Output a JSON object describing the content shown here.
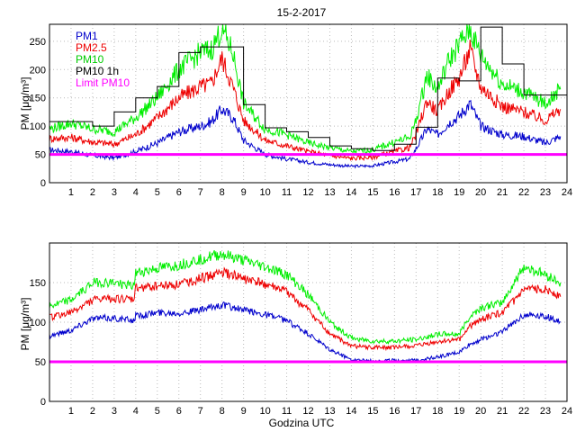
{
  "chart_data": [
    {
      "type": "line",
      "title": "15-2-2017",
      "xlabel": "",
      "ylabel": "PM [μg/m³]",
      "xlim": [
        0,
        24
      ],
      "ylim": [
        0,
        280
      ],
      "xticks": [
        "1",
        "2",
        "3",
        "4",
        "5",
        "6",
        "7",
        "8",
        "9",
        "10",
        "11",
        "12",
        "13",
        "14",
        "15",
        "16",
        "17",
        "18",
        "19",
        "20",
        "21",
        "22",
        "23",
        "24"
      ],
      "yticks": [
        "0",
        "50",
        "100",
        "150",
        "200",
        "250"
      ],
      "grid": true,
      "legend_position": "top-left",
      "legend": [
        "PM1",
        "PM2.5",
        "PM10",
        "PM10 1h",
        "Limit PM10"
      ],
      "series": [
        {
          "name": "PM1",
          "color": "#0000cc",
          "x": [
            0,
            1,
            2,
            3,
            4,
            5,
            6,
            7,
            7.5,
            8,
            8.5,
            9,
            10,
            11,
            12,
            13,
            14,
            15,
            16,
            16.7,
            17,
            17.5,
            18,
            18.5,
            19,
            19.5,
            20,
            21,
            22,
            23,
            23.7
          ],
          "y": [
            58,
            55,
            48,
            44,
            55,
            70,
            90,
            100,
            108,
            130,
            115,
            75,
            50,
            42,
            36,
            32,
            29,
            30,
            37,
            42,
            60,
            95,
            85,
            105,
            118,
            140,
            100,
            85,
            82,
            70,
            82
          ]
        },
        {
          "name": "PM2.5",
          "color": "#ee0000",
          "x": [
            0,
            1,
            2,
            3,
            4,
            5,
            6,
            7,
            7.5,
            8,
            8.5,
            9,
            10,
            11,
            12,
            13,
            14,
            15,
            16,
            16.7,
            17,
            17.5,
            18,
            18.5,
            19,
            19.5,
            20,
            21,
            22,
            23,
            23.7
          ],
          "y": [
            78,
            80,
            72,
            68,
            85,
            115,
            150,
            170,
            175,
            220,
            170,
            110,
            75,
            65,
            55,
            48,
            43,
            45,
            55,
            62,
            85,
            145,
            125,
            160,
            185,
            235,
            170,
            135,
            125,
            110,
            130
          ]
        },
        {
          "name": "PM10",
          "color": "#00ee00",
          "x": [
            0,
            1,
            2,
            3,
            4,
            5,
            6,
            7,
            7.5,
            8,
            8.5,
            9,
            10,
            11,
            12,
            13,
            14,
            15,
            16,
            16.7,
            17,
            17.5,
            18,
            18.5,
            19,
            19.5,
            20,
            21,
            22,
            23,
            23.7
          ],
          "y": [
            95,
            105,
            95,
            90,
            115,
            150,
            200,
            230,
            235,
            272,
            230,
            140,
            95,
            85,
            70,
            62,
            55,
            58,
            72,
            80,
            110,
            190,
            165,
            215,
            245,
            272,
            225,
            175,
            160,
            140,
            165
          ]
        }
      ],
      "series_step": [
        {
          "name": "PM10 1h",
          "color": "#000000",
          "hours": [
            0,
            1,
            2,
            3,
            4,
            5,
            6,
            7,
            8,
            9,
            10,
            11,
            12,
            13,
            14,
            15,
            16,
            17,
            18,
            19,
            20,
            21,
            22,
            23
          ],
          "values": [
            108,
            108,
            100,
            125,
            150,
            170,
            230,
            240,
            240,
            138,
            97,
            90,
            80,
            65,
            60,
            57,
            68,
            98,
            185,
            180,
            275,
            210,
            155,
            155
          ]
        }
      ],
      "hlines": [
        {
          "name": "Limit PM10",
          "color": "#ff00ff",
          "y": 50
        }
      ]
    },
    {
      "type": "line",
      "title": "",
      "xlabel": "Godzina UTC",
      "ylabel": "PM [μg/m³]",
      "xlim": [
        0,
        24
      ],
      "ylim": [
        0,
        200
      ],
      "xticks": [
        "1",
        "2",
        "3",
        "4",
        "5",
        "6",
        "7",
        "8",
        "9",
        "10",
        "11",
        "12",
        "13",
        "14",
        "15",
        "16",
        "17",
        "18",
        "19",
        "20",
        "21",
        "22",
        "23",
        "24"
      ],
      "yticks": [
        "0",
        "50",
        "100",
        "150"
      ],
      "grid": true,
      "series": [
        {
          "name": "PM1",
          "color": "#0000cc",
          "x": [
            0,
            1,
            2,
            3,
            3.9,
            4,
            5,
            6,
            7,
            8,
            9,
            10,
            11,
            12,
            13,
            14,
            15,
            16,
            17,
            18,
            19,
            19.5,
            20,
            21,
            22,
            23,
            23.7
          ],
          "y": [
            83,
            90,
            105,
            105,
            102,
            108,
            112,
            112,
            115,
            122,
            115,
            110,
            102,
            85,
            65,
            53,
            51,
            52,
            52,
            56,
            62,
            72,
            78,
            88,
            110,
            108,
            100
          ]
        },
        {
          "name": "PM2.5",
          "color": "#ee0000",
          "x": [
            0,
            1,
            2,
            3,
            3.9,
            4,
            5,
            6,
            7,
            8,
            9,
            10,
            11,
            12,
            13,
            14,
            15,
            16,
            17,
            18,
            19,
            19.5,
            20,
            21,
            22,
            23,
            23.7
          ],
          "y": [
            106,
            112,
            128,
            130,
            128,
            143,
            146,
            148,
            155,
            163,
            155,
            148,
            138,
            115,
            85,
            70,
            68,
            68,
            70,
            75,
            78,
            95,
            104,
            112,
            140,
            143,
            132
          ]
        },
        {
          "name": "PM10",
          "color": "#00ee00",
          "x": [
            0,
            1,
            2,
            3,
            3.9,
            4,
            5,
            6,
            7,
            8,
            9,
            10,
            11,
            12,
            13,
            14,
            15,
            16,
            17,
            18,
            19,
            19.5,
            20,
            21,
            22,
            23,
            23.7
          ],
          "y": [
            120,
            128,
            150,
            150,
            145,
            162,
            168,
            172,
            180,
            186,
            178,
            170,
            160,
            135,
            100,
            80,
            76,
            76,
            78,
            85,
            85,
            108,
            118,
            125,
            170,
            160,
            150
          ]
        }
      ],
      "hlines": [
        {
          "name": "Limit PM10",
          "color": "#ff00ff",
          "y": 50
        }
      ]
    }
  ]
}
